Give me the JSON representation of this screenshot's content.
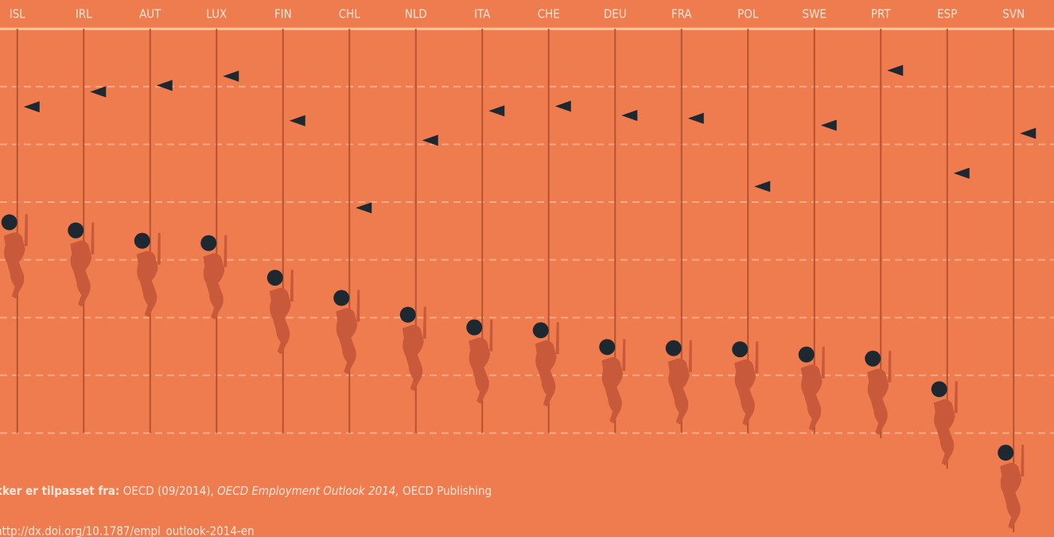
{
  "chart_data": {
    "type": "climbers",
    "categories": [
      "ISL",
      "IRL",
      "AUT",
      "LUX",
      "FIN",
      "CHL",
      "NLD",
      "ITA",
      "CHE",
      "DEU",
      "FRA",
      "POL",
      "SWE",
      "PRT",
      "ESP",
      "SVN"
    ],
    "series": [
      {
        "marker": "circle",
        "color": "#1d2830",
        "values": [
          36.5,
          35.1,
          33.3,
          32.9,
          26.9,
          23.4,
          20.5,
          18.3,
          17.8,
          14.9,
          14.7,
          14.5,
          13.6,
          12.9,
          7.6,
          -3.4
        ]
      },
      {
        "marker": "triangle",
        "color": "#1d2830",
        "values": [
          56.5,
          59.1,
          60.2,
          61.8,
          54.1,
          39.0,
          50.7,
          55.8,
          56.6,
          55.0,
          54.5,
          42.7,
          53.3,
          62.8,
          45.0,
          51.9
        ]
      }
    ],
    "ylim": [
      -18,
      75
    ],
    "gridlines": [
      0,
      10,
      20,
      30,
      40,
      50,
      60,
      70
    ],
    "grid": true
  },
  "source": {
    "label": "kker er tilpasset fra:",
    "text": "OECD (09/2014),",
    "publication": "OECD Employment Outlook 2014,",
    "publisher": "OECD Publishing",
    "url": "http://dx.doi.org/10.1787/empl_outlook-2014-en"
  }
}
